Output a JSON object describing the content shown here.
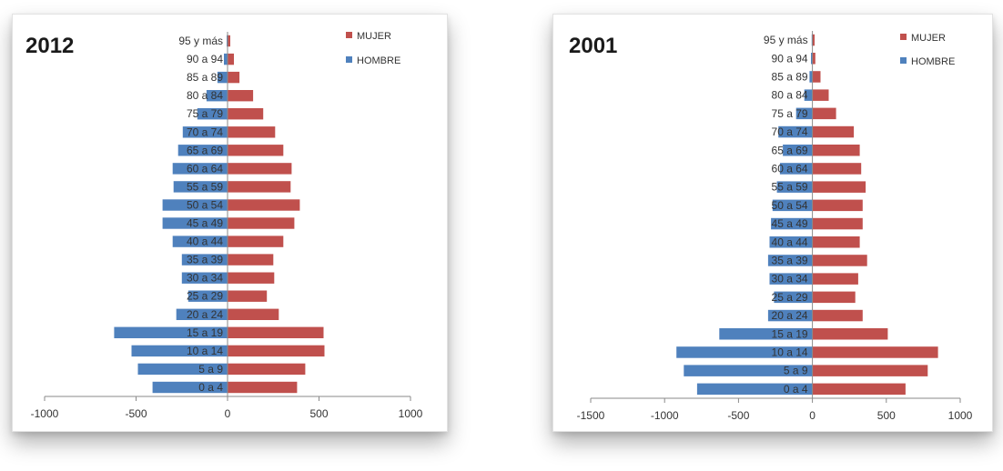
{
  "colors": {
    "mujer": "#c0504d",
    "hombre": "#4f81bd",
    "axis": "#8a8a8a"
  },
  "chart_data": [
    {
      "type": "bar",
      "orientation": "horizontal",
      "title": "2012",
      "categories": [
        "0 a 4",
        "5 a 9",
        "10 a 14",
        "15 a 19",
        "20 a 24",
        "25 a 29",
        "30 a 34",
        "35 a 39",
        "40 a 44",
        "45 a 49",
        "50 a 54",
        "55 a 59",
        "60 a 64",
        "65 a 69",
        "70 a 74",
        "75 a 79",
        "80 a 84",
        "85 a 89",
        "90 a 94",
        "95 y más"
      ],
      "series": [
        {
          "name": "MUJER",
          "values": [
            380,
            425,
            530,
            525,
            280,
            215,
            255,
            250,
            305,
            365,
            395,
            345,
            350,
            305,
            260,
            195,
            140,
            65,
            35,
            15
          ]
        },
        {
          "name": "HOMBRE",
          "values": [
            -410,
            -490,
            -525,
            -620,
            -280,
            -215,
            -250,
            -250,
            -300,
            -355,
            -355,
            -295,
            -300,
            -270,
            -245,
            -165,
            -115,
            -55,
            -20,
            -5
          ]
        }
      ],
      "xticks": [
        "-1000",
        "-500",
        "0",
        "500",
        "1000"
      ],
      "xlim": [
        -1000,
        1000
      ],
      "legend": "top-right"
    },
    {
      "type": "bar",
      "orientation": "horizontal",
      "title": "2001",
      "categories": [
        "0 a 4",
        "5 a 9",
        "10 a 14",
        "15 a 19",
        "20 a 24",
        "25 a 29",
        "30 a 34",
        "35 a 39",
        "40 a 44",
        "45 a 49",
        "50 a 54",
        "55 a 59",
        "60 a 64",
        "65 a 69",
        "70 a 74",
        "75 a 79",
        "80 a 84",
        "85 a 89",
        "90 a 94",
        "95 y más"
      ],
      "series": [
        {
          "name": "MUJER",
          "values": [
            630,
            780,
            850,
            510,
            340,
            290,
            310,
            370,
            320,
            340,
            340,
            360,
            330,
            320,
            280,
            160,
            110,
            55,
            20,
            15
          ]
        },
        {
          "name": "HOMBRE",
          "values": [
            -780,
            -870,
            -920,
            -630,
            -300,
            -260,
            -290,
            -300,
            -290,
            -280,
            -270,
            -240,
            -220,
            -200,
            -230,
            -110,
            -55,
            -20,
            -10,
            -5
          ]
        }
      ],
      "xticks": [
        "-1500",
        "-1000",
        "-500",
        "0",
        "500",
        "1000"
      ],
      "xlim": [
        -1500,
        1000
      ],
      "legend": "top-right"
    }
  ]
}
